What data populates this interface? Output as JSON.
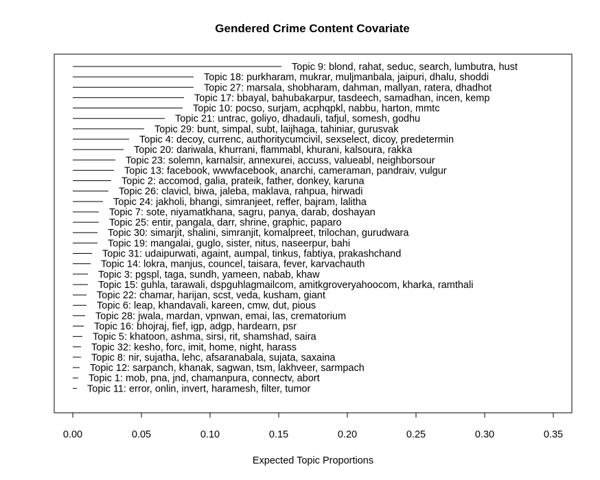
{
  "chart_data": {
    "type": "bar",
    "orientation": "horizontal",
    "title": "Gendered Crime Content Covariate",
    "xlabel": "Expected Topic Proportions",
    "ylabel": "",
    "xlim": [
      0,
      0.35
    ],
    "xticks": [
      "0.00",
      "0.05",
      "0.10",
      "0.15",
      "0.20",
      "0.25",
      "0.30",
      "0.35"
    ],
    "grid": false,
    "categories": [
      "Topic 9: blond, rahat, seduc, search, lumbutra, hust",
      "Topic 18: purkharam, mukrar, muljmanbala, jaipuri, dhalu, shoddi",
      "Topic 27: marsala, shobharam, dahman, mallyan, ratera, dhadhot",
      "Topic 17: bbayal, bahubakarpur, tasdeech, samadhan, incen, kemp",
      "Topic 10: pocso, surjam, acphqpkl, nabbu, harton, mmtc",
      "Topic 21: untrac, goliyo, dhadauli, tafjul, somesh, godhu",
      "Topic 29: bunt, simpal, subt, laijhaga, tahiniar, gurusvak",
      "Topic 4: decoy, currenc, authoritycumcivil, sexselect, dicoy, predetermin",
      "Topic 20: dariwala, khurrani, flammabl, khurani, kalsoura, rakka",
      "Topic 23: solemn, karnalsir, annexurei, accuss, valueabl, neighborsour",
      "Topic 13: facebook, wwwfacebook, anarchi, cameraman, pandraiv, vulgur",
      "Topic 2: accomod, galia, prateik, father, donkey, karuna",
      "Topic 26: clavicl, biwa, jaleba, maklava, rahpua, hirwadi",
      "Topic 24: jakholi, bhangi, simranjeet, reffer, bajram, lalitha",
      "Topic 7: sote, niyamatkhana, sagru, panya, darab, doshayan",
      "Topic 25: entir, pangala, darr, shrine, graphic, paparo",
      "Topic 30: simarjit, shalini, simranjit, komalpreet, trilochan, gurudwara",
      "Topic 19: mangalai, guglo, sister, nitus, naseerpur, bahi",
      "Topic 31: udaipurwati, againt, aumpal, tinkus, fabtiya, prakashchand",
      "Topic 14: lokra, manjus, councel, taisara, fever, karvachauth",
      "Topic 3: pgspl, taga, sundh, yameen, nabab, khaw",
      "Topic 15: guhla, tarawali, dspguhlagmailcom, amitkgroveryahoocom, kharka, ramthali",
      "Topic 22: chamar, harijan, scst, veda, kusham, giant",
      "Topic 6: leap, khandavali, kareen, cmw, dut, pious",
      "Topic 28: jwala, mardan, vpnwan, emai, las, crematorium",
      "Topic 16: bhojraj, fief, igp, adgp, hardearn, psr",
      "Topic 5: khatoon, ashma, sirsi, rit, shamshad, saira",
      "Topic 32: kesho, forc, imit, home, night, harass",
      "Topic 8: nir, sujatha, lehc, afsaranabala, sujata, saxaina",
      "Topic 12: sarpanch, khanak, sagwan, tsm, lakhveer, sarmpach",
      "Topic 1: mob, pna, jnd, chamanpura, connectv, abort",
      "Topic 11: error, onlin, invert, haramesh, filter, tumor"
    ],
    "values": [
      0.152,
      0.088,
      0.088,
      0.081,
      0.08,
      0.067,
      0.052,
      0.041,
      0.037,
      0.031,
      0.03,
      0.028,
      0.026,
      0.022,
      0.019,
      0.019,
      0.018,
      0.018,
      0.014,
      0.013,
      0.011,
      0.011,
      0.01,
      0.01,
      0.009,
      0.008,
      0.007,
      0.006,
      0.006,
      0.005,
      0.004,
      0.003
    ]
  }
}
